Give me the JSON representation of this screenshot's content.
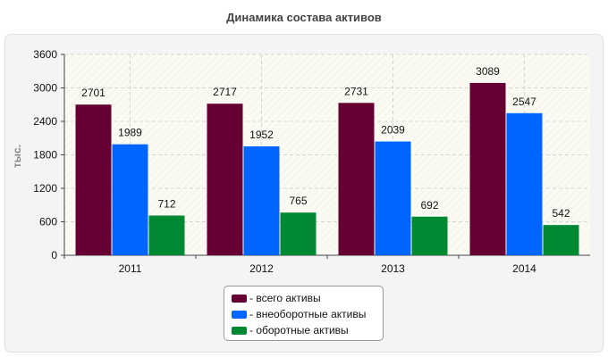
{
  "chart_data": {
    "type": "bar",
    "title": "Динамика состава активов",
    "xlabel": "",
    "ylabel": "тыс.",
    "categories": [
      "2011",
      "2012",
      "2013",
      "2014"
    ],
    "ylim": [
      0,
      3600
    ],
    "yticks": [
      0,
      600,
      1200,
      1800,
      2400,
      3000,
      3600
    ],
    "grid": true,
    "legend_position": "bottom-center",
    "series": [
      {
        "name": "- всего активы",
        "color": "#660033",
        "values": [
          2701,
          2717,
          2731,
          3089
        ]
      },
      {
        "name": "- внеоборотные активы",
        "color": "#0066ff",
        "values": [
          1989,
          1952,
          2039,
          2547
        ]
      },
      {
        "name": "- оборотные активы",
        "color": "#008833",
        "values": [
          712,
          765,
          692,
          542
        ]
      }
    ]
  }
}
